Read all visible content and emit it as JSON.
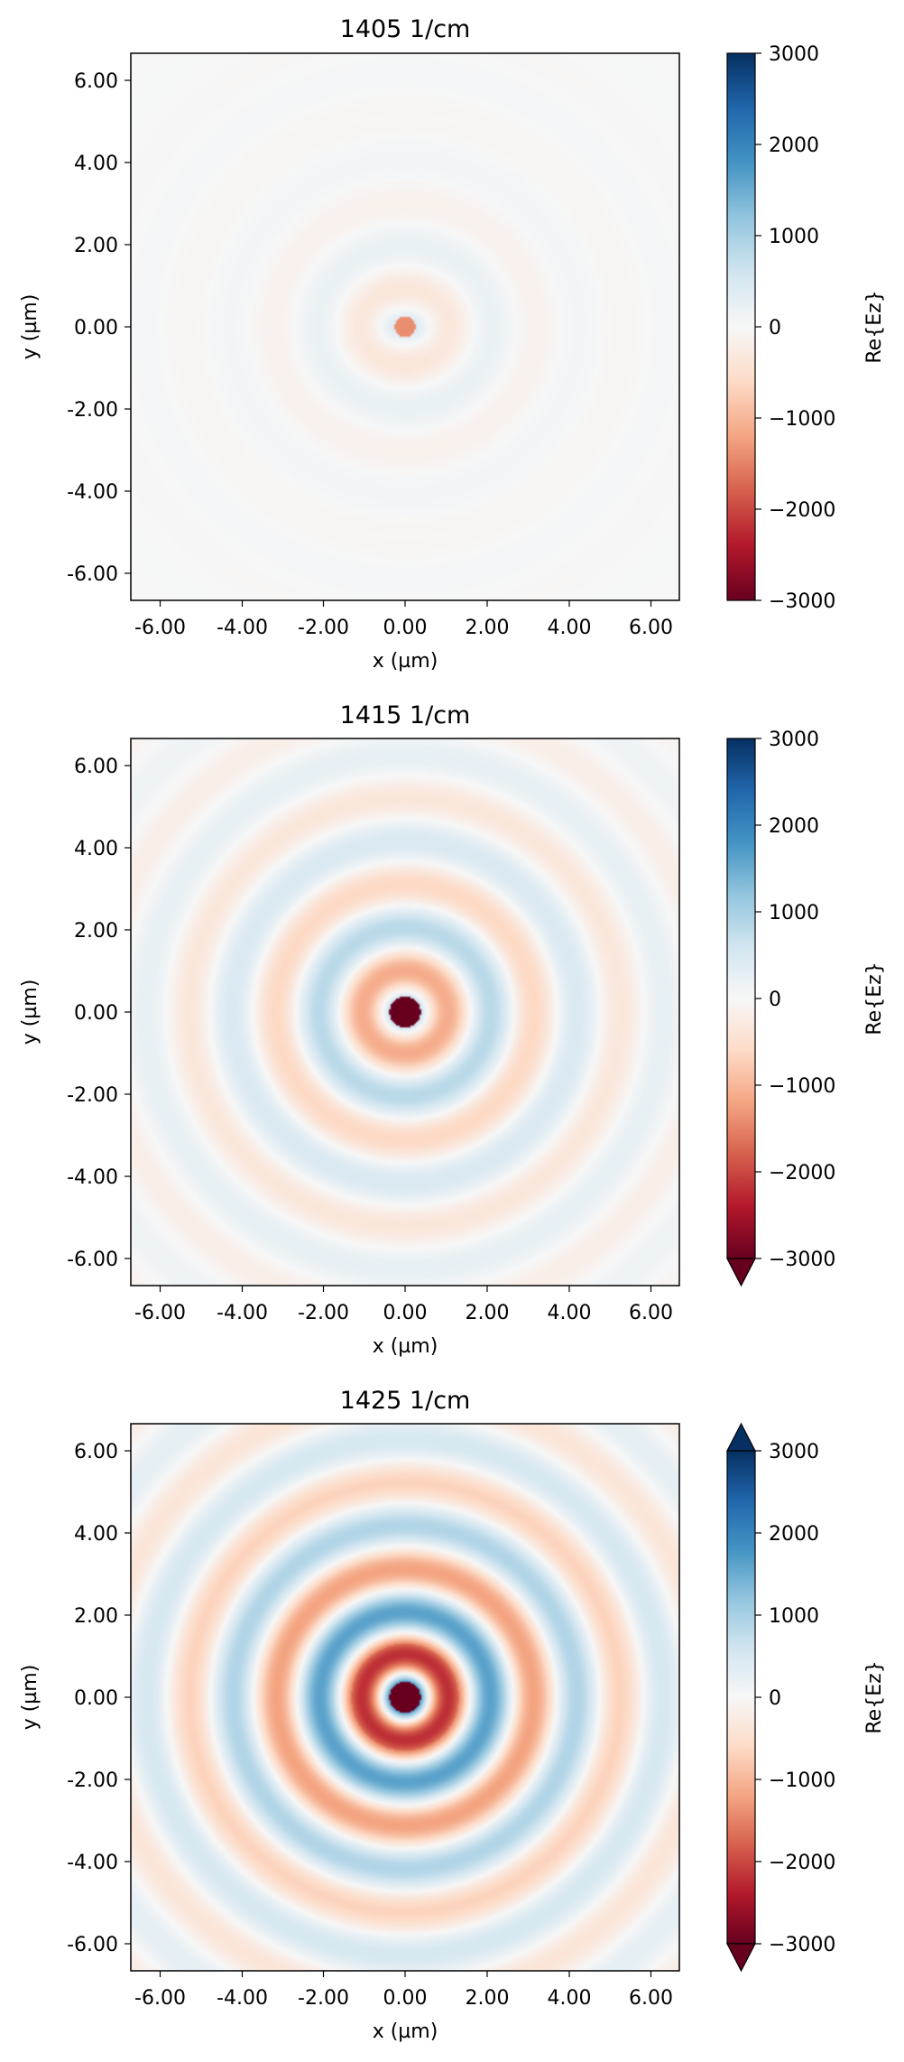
{
  "chart_data": [
    {
      "type": "heatmap",
      "title": "1405 1/cm",
      "xlabel": "x (µm)",
      "ylabel": "y (µm)",
      "xlim": [
        -6.65,
        6.65
      ],
      "ylim": [
        -6.65,
        6.65
      ],
      "xticks": [
        "-6.00",
        "-4.00",
        "-2.00",
        "0.00",
        "2.00",
        "4.00",
        "6.00"
      ],
      "yticks": [
        "6.00",
        "4.00",
        "2.00",
        "0.00",
        "-2.00",
        "-4.00",
        "-6.00"
      ],
      "field": {
        "center_value": -1400,
        "core_radius": 0.25,
        "amplitude": 520,
        "wavelength": 2.1,
        "decay": 2.2,
        "cross": 0.25
      },
      "colorbar": {
        "label": "Re{Ez}",
        "colormap": "RdBu",
        "vmin": -3000,
        "vmax": 3000,
        "ticks": [
          "3000",
          "2000",
          "1000",
          "0",
          "−1000",
          "−2000",
          "−3000"
        ],
        "extend": "neither"
      }
    },
    {
      "type": "heatmap",
      "title": "1415 1/cm",
      "xlabel": "x (µm)",
      "ylabel": "y (µm)",
      "xlim": [
        -6.65,
        6.65
      ],
      "ylim": [
        -6.65,
        6.65
      ],
      "xticks": [
        "-6.00",
        "-4.00",
        "-2.00",
        "0.00",
        "2.00",
        "4.00",
        "6.00"
      ],
      "yticks": [
        "6.00",
        "4.00",
        "2.00",
        "0.00",
        "-2.00",
        "-4.00",
        "-6.00"
      ],
      "field": {
        "center_value": -3500,
        "core_radius": 0.38,
        "amplitude": 1500,
        "wavelength": 2.1,
        "decay": 3.5,
        "cross": 0.05
      },
      "colorbar": {
        "label": "Re{Ez}",
        "colormap": "RdBu",
        "vmin": -3000,
        "vmax": 3000,
        "ticks": [
          "3000",
          "2000",
          "1000",
          "0",
          "−1000",
          "−2000",
          "−3000"
        ],
        "extend": "min"
      }
    },
    {
      "type": "heatmap",
      "title": "1425 1/cm",
      "xlabel": "x (µm)",
      "ylabel": "y (µm)",
      "xlim": [
        -6.65,
        6.65
      ],
      "ylim": [
        -6.65,
        6.65
      ],
      "xticks": [
        "-6.00",
        "-4.00",
        "-2.00",
        "0.00",
        "2.00",
        "4.00",
        "6.00"
      ],
      "yticks": [
        "6.00",
        "4.00",
        "2.00",
        "0.00",
        "-2.00",
        "-4.00",
        "-6.00"
      ],
      "field": {
        "center_value": -3500,
        "core_radius": 0.38,
        "amplitude": 2900,
        "wavelength": 2.1,
        "decay": 3.6,
        "cross": 0.0,
        "ring_boost": 3600
      },
      "colorbar": {
        "label": "Re{Ez}",
        "colormap": "RdBu",
        "vmin": -3000,
        "vmax": 3000,
        "ticks": [
          "3000",
          "2000",
          "1000",
          "0",
          "−1000",
          "−2000",
          "−3000"
        ],
        "extend": "both"
      }
    }
  ]
}
